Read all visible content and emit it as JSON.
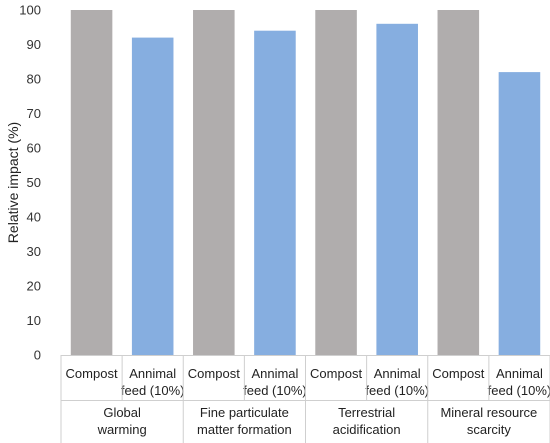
{
  "chart_data": {
    "type": "bar",
    "ylabel": "Relative impact (%)",
    "ylim": [
      0,
      100
    ],
    "yticks": [
      0,
      10,
      20,
      30,
      40,
      50,
      60,
      70,
      80,
      90,
      100
    ],
    "grid": false,
    "groups": [
      {
        "label_lines": [
          "Global",
          "warming"
        ],
        "bars": [
          {
            "label_lines": [
              "Compost"
            ],
            "value": 100,
            "color": "#b0adad"
          },
          {
            "label_lines": [
              "Annimal",
              "feed (10%)"
            ],
            "value": 92,
            "color": "#86aee0"
          }
        ]
      },
      {
        "label_lines": [
          "Fine particulate",
          "matter formation"
        ],
        "bars": [
          {
            "label_lines": [
              "Compost"
            ],
            "value": 100,
            "color": "#b0adad"
          },
          {
            "label_lines": [
              "Annimal",
              "feed (10%)"
            ],
            "value": 94,
            "color": "#86aee0"
          }
        ]
      },
      {
        "label_lines": [
          "Terrestrial",
          "acidification"
        ],
        "bars": [
          {
            "label_lines": [
              "Compost"
            ],
            "value": 100,
            "color": "#b0adad"
          },
          {
            "label_lines": [
              "Annimal",
              "feed (10%)"
            ],
            "value": 96,
            "color": "#86aee0"
          }
        ]
      },
      {
        "label_lines": [
          "Mineral resource",
          "scarcity"
        ],
        "bars": [
          {
            "label_lines": [
              "Compost"
            ],
            "value": 100,
            "color": "#b0adad"
          },
          {
            "label_lines": [
              "Annimal",
              "feed (10%)"
            ],
            "value": 82,
            "color": "#86aee0"
          }
        ]
      }
    ]
  }
}
